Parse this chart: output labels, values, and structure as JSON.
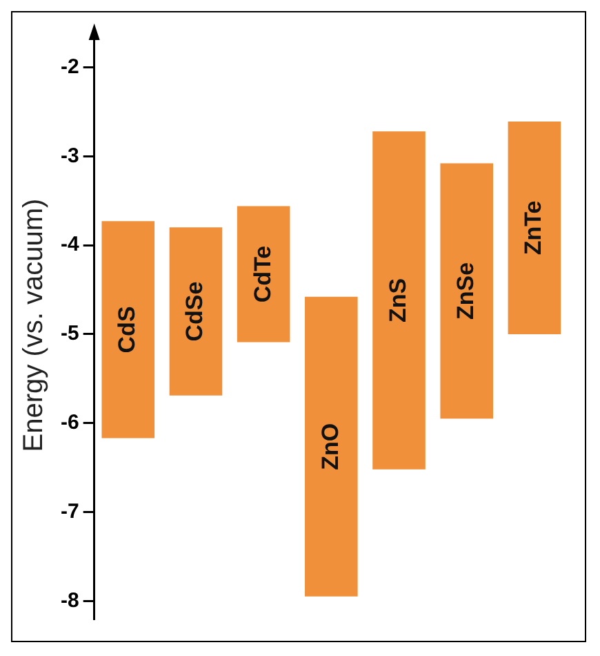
{
  "chart_data": {
    "type": "bar",
    "ylabel": "Energy (vs. vacuum)",
    "categories": [
      "CdS",
      "CdSe",
      "CdTe",
      "ZnO",
      "ZnS",
      "ZnSe",
      "ZnTe"
    ],
    "base": [
      -6.17,
      -5.69,
      -5.09,
      -7.95,
      -6.52,
      -5.95,
      -5.0
    ],
    "values": [
      2.44,
      1.89,
      1.53,
      3.37,
      3.8,
      2.87,
      2.39
    ],
    "color": "#f0903a",
    "ylim": [
      -8.2,
      -1.6
    ],
    "yticks": [
      -8,
      -7,
      -6,
      -5,
      -4,
      -3,
      -2
    ],
    "grid": false,
    "legend": false,
    "tick_labels": "y"
  }
}
